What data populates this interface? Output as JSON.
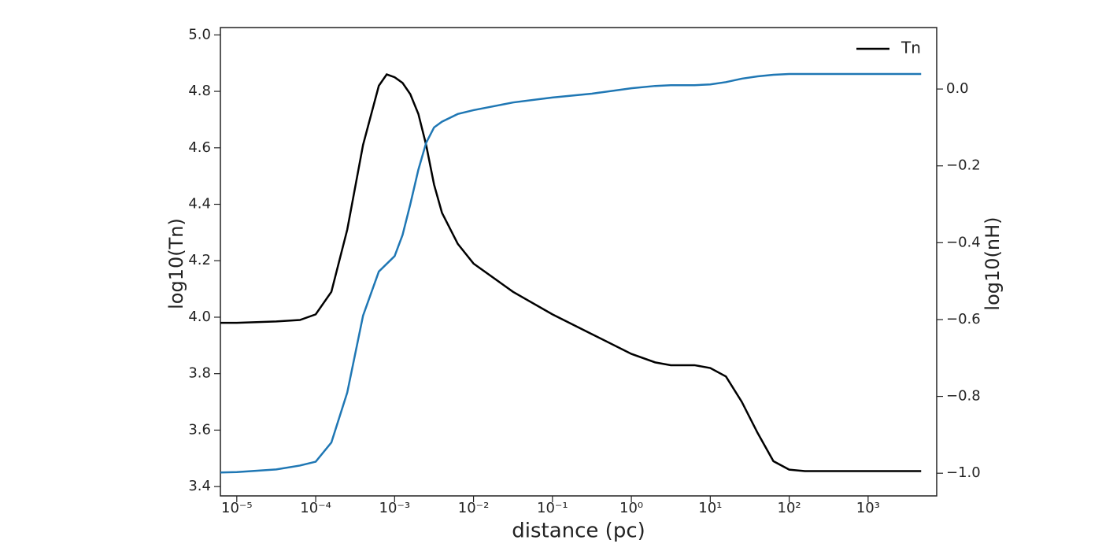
{
  "chart_data": {
    "type": "line",
    "x_label": "distance (pc)",
    "y_label": "log10(Tn)",
    "y2_label": "log10(nH)",
    "x_log": true,
    "x": [
      6.2e-06,
      1e-05,
      3.16e-05,
      6.31e-05,
      0.0001,
      0.000158,
      0.000251,
      0.000398,
      0.000631,
      0.000794,
      0.001,
      0.00126,
      0.00158,
      0.002,
      0.00251,
      0.00316,
      0.00398,
      0.00631,
      0.01,
      0.0316,
      0.1,
      0.316,
      1,
      2,
      3.16,
      6.31,
      10,
      15.8,
      25.1,
      39.8,
      63.1,
      100,
      158,
      316,
      1000,
      4700
    ],
    "series": [
      {
        "name": "Tn",
        "color": "#000000",
        "axis": "y",
        "values": [
          3.98,
          3.98,
          3.985,
          3.99,
          4.01,
          4.09,
          4.31,
          4.61,
          4.82,
          4.86,
          4.85,
          4.83,
          4.79,
          4.72,
          4.61,
          4.47,
          4.37,
          4.26,
          4.19,
          4.09,
          4.01,
          3.94,
          3.87,
          3.84,
          3.83,
          3.83,
          3.82,
          3.79,
          3.7,
          3.59,
          3.49,
          3.46,
          3.455,
          3.455,
          3.455,
          3.455
        ]
      },
      {
        "color": "#1f77b4",
        "axis": "y2",
        "values": [
          -0.998,
          -0.997,
          -0.99,
          -0.98,
          -0.97,
          -0.92,
          -0.79,
          -0.59,
          -0.475,
          -0.455,
          -0.435,
          -0.38,
          -0.3,
          -0.21,
          -0.14,
          -0.1,
          -0.085,
          -0.065,
          -0.055,
          -0.035,
          -0.022,
          -0.012,
          0.002,
          0.008,
          0.01,
          0.01,
          0.012,
          0.018,
          0.027,
          0.033,
          0.037,
          0.039,
          0.039,
          0.039,
          0.039,
          0.039
        ]
      }
    ],
    "xlim": [
      6.2e-06,
      7400
    ],
    "xticks": [
      {
        "value": 1e-05,
        "label": "10⁻⁵"
      },
      {
        "value": 0.0001,
        "label": "10⁻⁴"
      },
      {
        "value": 0.001,
        "label": "10⁻³"
      },
      {
        "value": 0.01,
        "label": "10⁻²"
      },
      {
        "value": 0.1,
        "label": "10⁻¹"
      },
      {
        "value": 1,
        "label": "10⁰"
      },
      {
        "value": 10,
        "label": "10¹"
      },
      {
        "value": 100,
        "label": "10²"
      },
      {
        "value": 1000,
        "label": "10³"
      }
    ],
    "ylim": [
      3.367,
      5.026
    ],
    "yticks": [
      3.4,
      3.6,
      3.8,
      {
        "value": 4,
        "label": "4.0"
      },
      4.2,
      4.4,
      4.6,
      4.8,
      {
        "value": 5,
        "label": "5.0"
      }
    ],
    "y2lim": [
      -1.059,
      0.16
    ],
    "y2ticks": [
      {
        "value": -1,
        "label": "−1.0"
      },
      {
        "value": -0.8,
        "label": "−0.8"
      },
      {
        "value": -0.6,
        "label": "−0.6"
      },
      {
        "value": -0.4,
        "label": "−0.4"
      },
      {
        "value": -0.2,
        "label": "−0.2"
      },
      {
        "value": 0,
        "label": "0.0"
      }
    ],
    "legend": "upper right"
  }
}
